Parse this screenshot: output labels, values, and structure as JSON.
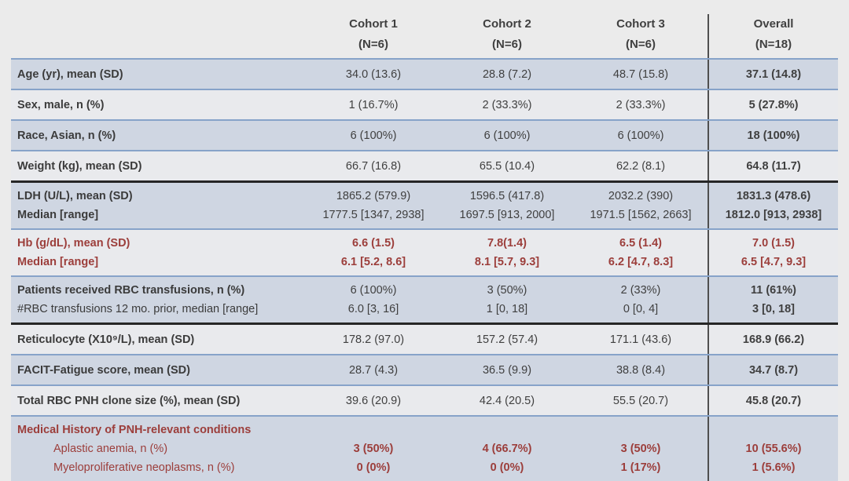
{
  "page": {
    "background": "#ebebeb",
    "description": "Baseline characteristics table with three cohorts and overall column"
  },
  "colors": {
    "stripe_dark": "#cfd6e2",
    "stripe_light": "#e9eaed",
    "blue_rule": "#87a3c9",
    "black_rule": "#262626",
    "separator": "#4f4f4f",
    "text_normal": "#3f3f3f",
    "text_red": "#9c3e3b"
  },
  "table": {
    "columns": [
      {
        "h1": "",
        "h2": ""
      },
      {
        "h1": "Cohort 1",
        "h2": "(N=6)"
      },
      {
        "h1": "Cohort 2",
        "h2": "(N=6)"
      },
      {
        "h1": "Cohort 3",
        "h2": "(N=6)"
      },
      {
        "h1": "Overall",
        "h2": "(N=18)"
      }
    ],
    "rows": [
      {
        "label_lines": [
          {
            "t": "Age (yr), mean (SD)",
            "b": true
          }
        ],
        "cells": [
          [
            "34.0 (13.6)"
          ],
          [
            "28.8 (7.2)"
          ],
          [
            "48.7 (15.8)"
          ],
          [
            "37.1 (14.8)"
          ]
        ],
        "red": false,
        "stripe": "dark",
        "border": "blue",
        "first": true
      },
      {
        "label_lines": [
          {
            "t": "Sex, male, n (%)",
            "b": true
          }
        ],
        "cells": [
          [
            "1 (16.7%)"
          ],
          [
            "2 (33.3%)"
          ],
          [
            "2 (33.3%)"
          ],
          [
            "5 (27.8%)"
          ]
        ],
        "red": false,
        "stripe": "light",
        "border": "blue"
      },
      {
        "label_lines": [
          {
            "t": "Race, Asian, n (%)",
            "b": true
          }
        ],
        "cells": [
          [
            "6 (100%)"
          ],
          [
            "6 (100%)"
          ],
          [
            "6 (100%)"
          ],
          [
            "18 (100%)"
          ]
        ],
        "red": false,
        "stripe": "dark",
        "border": "blue"
      },
      {
        "label_lines": [
          {
            "t": "Weight (kg), mean (SD)",
            "b": true
          }
        ],
        "cells": [
          [
            "66.7 (16.8)"
          ],
          [
            "65.5 (10.4)"
          ],
          [
            "62.2 (8.1)"
          ],
          [
            "64.8 (11.7)"
          ]
        ],
        "red": false,
        "stripe": "light",
        "border": "black"
      },
      {
        "label_lines": [
          {
            "t": "LDH (U/L), mean (SD)",
            "b": true
          },
          {
            "t": "Median [range]",
            "b": true
          }
        ],
        "cells": [
          [
            "1865.2 (579.9)",
            "1777.5 [1347, 2938]"
          ],
          [
            "1596.5 (417.8)",
            "1697.5 [913, 2000]"
          ],
          [
            "2032.2 (390)",
            "1971.5 [1562, 2663]"
          ],
          [
            "1831.3 (478.6)",
            "1812.0 [913, 2938]"
          ]
        ],
        "red": false,
        "stripe": "dark",
        "border": "blue"
      },
      {
        "label_lines": [
          {
            "t": "Hb (g/dL), mean (SD)",
            "b": true
          },
          {
            "t": "Median [range]",
            "b": true
          }
        ],
        "cells": [
          [
            "6.6 (1.5)",
            "6.1 [5.2, 8.6]"
          ],
          [
            "7.8(1.4)",
            "8.1 [5.7, 9.3]"
          ],
          [
            "6.5 (1.4)",
            "6.2 [4.7, 8.3]"
          ],
          [
            "7.0 (1.5)",
            "6.5 [4.7, 9.3]"
          ]
        ],
        "red": true,
        "stripe": "light",
        "border": "blue"
      },
      {
        "label_lines": [
          {
            "t": "Patients received RBC transfusions, n (%)",
            "b": true
          },
          {
            "t": "#RBC transfusions 12 mo. prior, median [range]",
            "b": false
          }
        ],
        "cells": [
          [
            "6 (100%)",
            "6.0 [3, 16]"
          ],
          [
            "3 (50%)",
            "1  [0, 18]"
          ],
          [
            "2 (33%)",
            "0 [0, 4]"
          ],
          [
            "11 (61%)",
            "3 [0, 18]"
          ]
        ],
        "red": false,
        "stripe": "dark",
        "border": "black"
      },
      {
        "label_lines": [
          {
            "t": "Reticulocyte (X10⁹/L), mean (SD)",
            "b": true
          }
        ],
        "cells": [
          [
            "178.2 (97.0)"
          ],
          [
            "157.2 (57.4)"
          ],
          [
            "171.1 (43.6)"
          ],
          [
            "168.9 (66.2)"
          ]
        ],
        "red": false,
        "stripe": "light",
        "border": "blue"
      },
      {
        "label_lines": [
          {
            "t": "FACIT-Fatigue score, mean (SD)",
            "b": true
          }
        ],
        "cells": [
          [
            "28.7 (4.3)"
          ],
          [
            "36.5 (9.9)"
          ],
          [
            "38.8 (8.4)"
          ],
          [
            "34.7 (8.7)"
          ]
        ],
        "red": false,
        "stripe": "dark",
        "border": "blue"
      },
      {
        "label_lines": [
          {
            "t": "Total RBC PNH clone size (%), mean (SD)",
            "b": true
          }
        ],
        "cells": [
          [
            "39.6 (20.9)"
          ],
          [
            "42.4 (20.5)"
          ],
          [
            "55.5 (20.7)"
          ],
          [
            "45.8 (20.7)"
          ]
        ],
        "red": false,
        "stripe": "light",
        "border": "blue"
      },
      {
        "label_lines": [
          {
            "t": "Medical History of PNH-relevant conditions",
            "b": true
          },
          {
            "t": "Aplastic anemia, n (%)",
            "b": false,
            "ind": true
          },
          {
            "t": "Myeloproliferative neoplasms, n (%)",
            "b": false,
            "ind": true
          }
        ],
        "cells": [
          [
            "",
            "3 (50%)",
            "0 (0%)"
          ],
          [
            "",
            "4 (66.7%)",
            "0 (0%)"
          ],
          [
            "",
            "3 (50%)",
            "1 (17%)"
          ],
          [
            "",
            "10 (55.6%)",
            "1 (5.6%)"
          ]
        ],
        "red": true,
        "stripe": "dark",
        "border": "blue",
        "last": true
      }
    ]
  }
}
